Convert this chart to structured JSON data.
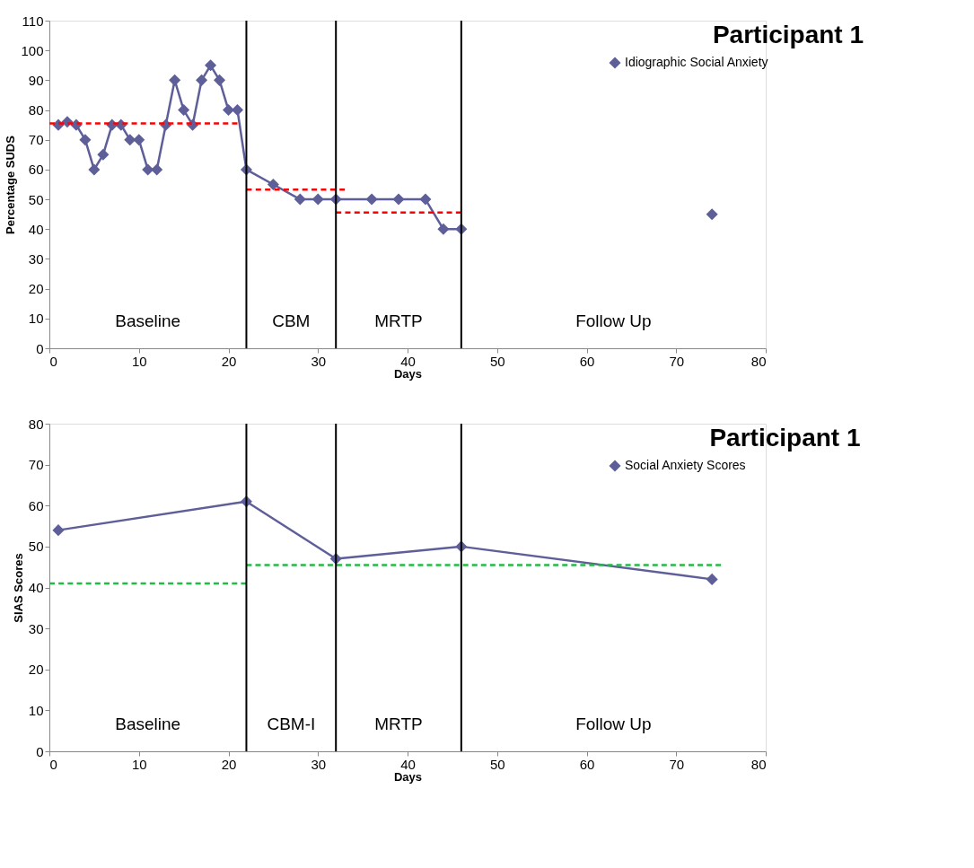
{
  "chart_data": [
    {
      "type": "line",
      "title": "Participant 1",
      "xlabel": "Days",
      "ylabel": "Percentage SUDS",
      "xlim": [
        0,
        80
      ],
      "xticks": [
        0,
        10,
        20,
        30,
        40,
        50,
        60,
        70,
        80
      ],
      "ylim": [
        0,
        110
      ],
      "yticks": [
        0,
        10,
        20,
        30,
        40,
        50,
        60,
        70,
        80,
        90,
        100,
        110
      ],
      "grid": false,
      "legend": "top right",
      "marker": "diamond",
      "x": [
        1,
        2,
        3,
        4,
        5,
        6,
        7,
        8,
        9,
        10,
        11,
        12,
        13,
        14,
        15,
        16,
        17,
        18,
        19,
        20,
        21,
        22,
        25,
        28,
        30,
        32,
        36,
        39,
        42,
        44,
        46,
        60,
        74
      ],
      "series": [
        {
          "name": "Idiographic Social Anxiety",
          "color": "#5e5e99",
          "values": [
            75,
            76,
            75,
            70,
            60,
            65,
            75,
            75,
            70,
            70,
            60,
            60,
            75,
            90,
            80,
            75,
            90,
            95,
            90,
            80,
            80,
            60,
            55,
            50,
            50,
            50,
            50,
            50,
            50,
            40,
            40,
            null,
            45
          ]
        },
        {
          "type": "line",
          "line_style": "dashed",
          "marker": "none",
          "color": "#ff0000",
          "x": [
            0,
            21
          ],
          "values": [
            75.5,
            75.5
          ]
        },
        {
          "type": "line",
          "line_style": "dashed",
          "marker": "none",
          "color": "#ff0000",
          "x": [
            22,
            33
          ],
          "values": [
            53.3,
            53.3
          ]
        },
        {
          "type": "line",
          "line_style": "dashed",
          "marker": "none",
          "color": "#ff0000",
          "x": [
            32,
            46
          ],
          "values": [
            45.6,
            45.6
          ]
        }
      ],
      "ref_lines": [
        {
          "axis": "x",
          "value": 22,
          "color": "#000000"
        },
        {
          "axis": "x",
          "value": 32,
          "color": "#000000"
        },
        {
          "axis": "x",
          "value": 46,
          "color": "#000000"
        }
      ],
      "annotations": [
        "Baseline",
        "CBM",
        "MRTP",
        "Follow Up"
      ]
    },
    {
      "type": "line",
      "title": "Participant 1",
      "xlabel": "Days",
      "ylabel": "SIAS Scores",
      "xlim": [
        0,
        80
      ],
      "xticks": [
        0,
        10,
        20,
        30,
        40,
        50,
        60,
        70,
        80
      ],
      "ylim": [
        0,
        80
      ],
      "yticks": [
        0,
        10,
        20,
        30,
        40,
        50,
        60,
        70,
        80
      ],
      "grid": false,
      "legend": "top right",
      "marker": "diamond",
      "x": [
        1,
        22,
        32,
        46,
        74
      ],
      "series": [
        {
          "name": "Social Anxiety Scores",
          "color": "#5e5e99",
          "values": [
            54,
            61,
            47,
            50,
            42
          ]
        },
        {
          "type": "line",
          "line_style": "dashed",
          "marker": "none",
          "color": "#22bb44",
          "x": [
            0,
            22
          ],
          "values": [
            41,
            41
          ]
        },
        {
          "type": "line",
          "line_style": "dashed",
          "marker": "none",
          "color": "#22bb44",
          "x": [
            22,
            75
          ],
          "values": [
            45.5,
            45.5
          ]
        }
      ],
      "ref_lines": [
        {
          "axis": "x",
          "value": 22,
          "color": "#000000"
        },
        {
          "axis": "x",
          "value": 32,
          "color": "#000000"
        },
        {
          "axis": "x",
          "value": 46,
          "color": "#000000"
        }
      ],
      "annotations": [
        "Baseline",
        "CBM-I",
        "MRTP",
        "Follow Up"
      ]
    }
  ]
}
